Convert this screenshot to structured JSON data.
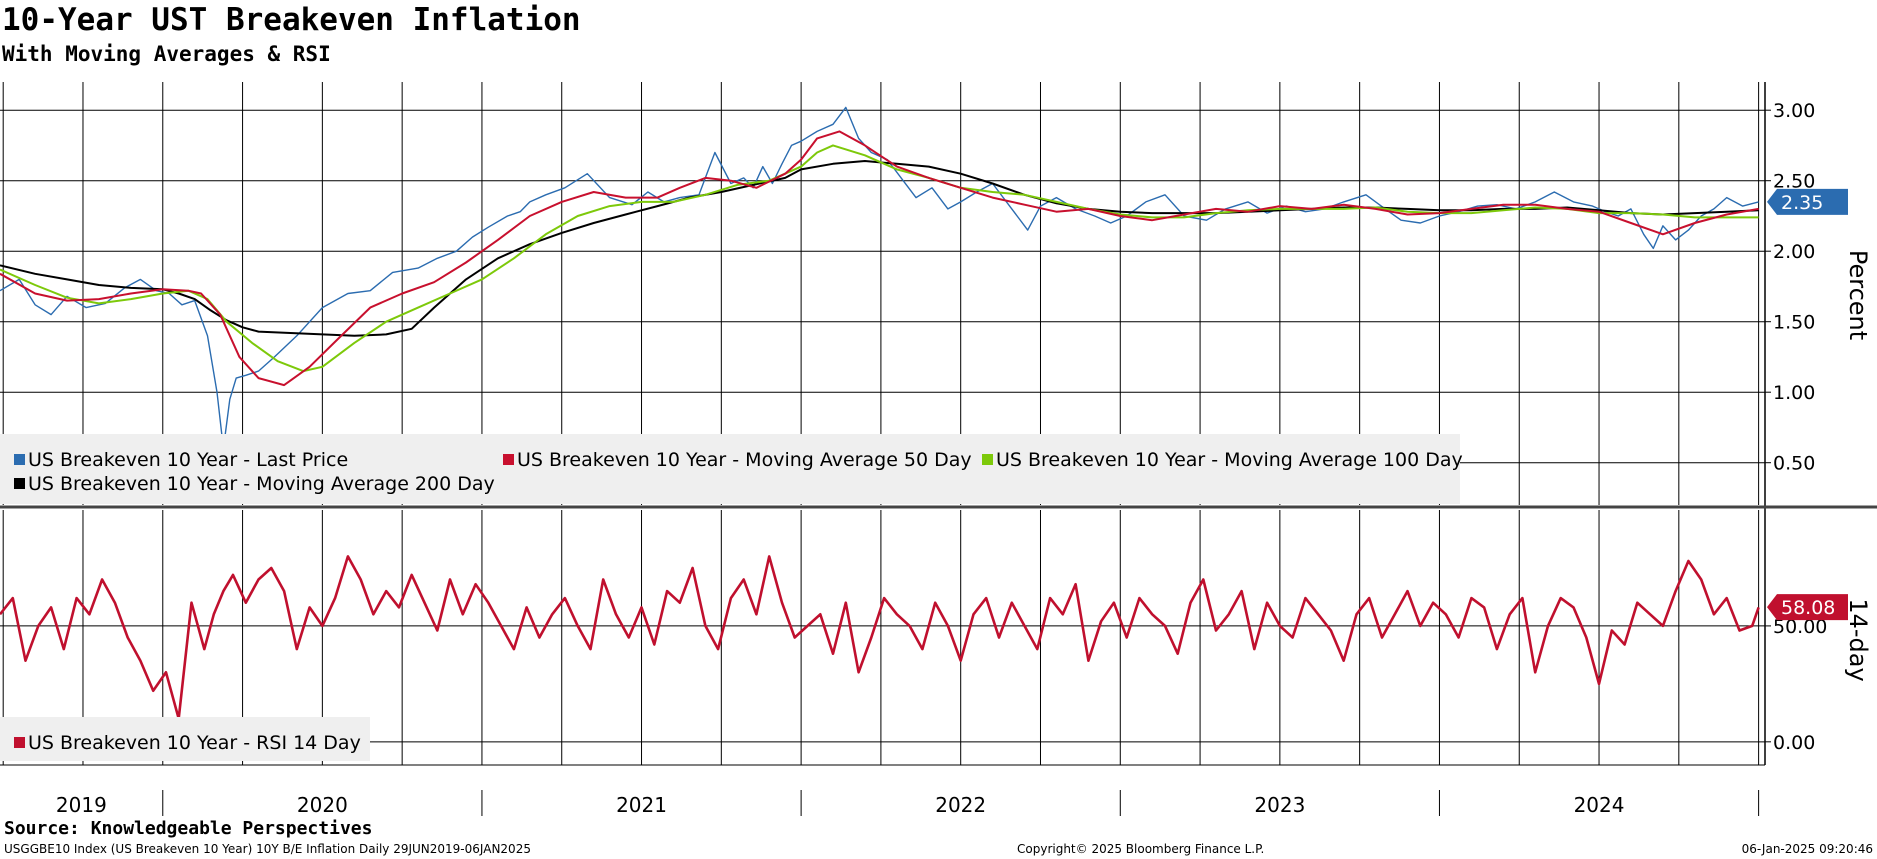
{
  "header": {
    "title": "10-Year UST Breakeven Inflation",
    "subtitle": "With Moving Averages & RSI"
  },
  "footer": {
    "source": "Source: Knowledgeable Perspectives",
    "ticker_info": "USGGBE10 Index (US Breakeven 10 Year) 10Y B/E Inflation  Daily 29JUN2019-06JAN2025",
    "copyright": "Copyright© 2025 Bloomberg Finance L.P.",
    "timestamp": "06-Jan-2025 09:20:46"
  },
  "colors": {
    "last_price": "#2b6cb0",
    "ma50": "#c8102e",
    "ma100": "#7dc90a",
    "ma200": "#000000",
    "rsi": "#c0102e",
    "grid": "#000000",
    "legend_bg": "#efefef"
  },
  "chart_data": [
    {
      "type": "line",
      "title": "US Breakeven 10 Year",
      "ylabel": "Percent",
      "ylim": [
        0.2,
        3.2
      ],
      "xlim": [
        2019.49,
        2025.02
      ],
      "yticks": [
        0.5,
        1.0,
        1.5,
        2.0,
        2.5,
        3.0
      ],
      "ytick_labels": [
        "0.50",
        "1.00",
        "1.50",
        "2.00",
        "2.50",
        "3.00"
      ],
      "last_value_label": "2.35",
      "last_value": 2.35,
      "legend": [
        "US Breakeven 10 Year - Last Price",
        "US Breakeven 10 Year - Moving Average 50 Day",
        "US Breakeven 10 Year - Moving Average 100 Day",
        "US Breakeven 10 Year - Moving Average 200 Day"
      ],
      "series": [
        {
          "name": "US Breakeven 10 Year - Last Price",
          "color_key": "last_price",
          "x": [
            2019.49,
            2019.55,
            2019.6,
            2019.65,
            2019.7,
            2019.76,
            2019.82,
            2019.88,
            2019.93,
            2019.98,
            2020.02,
            2020.06,
            2020.1,
            2020.14,
            2020.17,
            2020.19,
            2020.21,
            2020.23,
            2020.26,
            2020.3,
            2020.35,
            2020.42,
            2020.5,
            2020.58,
            2020.65,
            2020.72,
            2020.8,
            2020.86,
            2020.92,
            2020.97,
            2021.02,
            2021.08,
            2021.12,
            2021.15,
            2021.2,
            2021.26,
            2021.33,
            2021.4,
            2021.47,
            2021.52,
            2021.57,
            2021.62,
            2021.68,
            2021.73,
            2021.78,
            2021.82,
            2021.85,
            2021.88,
            2021.91,
            2021.94,
            2021.97,
            2022.0,
            2022.05,
            2022.1,
            2022.14,
            2022.18,
            2022.22,
            2022.27,
            2022.32,
            2022.36,
            2022.41,
            2022.46,
            2022.5,
            2022.55,
            2022.6,
            2022.66,
            2022.71,
            2022.75,
            2022.8,
            2022.86,
            2022.92,
            2022.97,
            2023.02,
            2023.08,
            2023.14,
            2023.2,
            2023.27,
            2023.33,
            2023.4,
            2023.46,
            2023.52,
            2023.58,
            2023.64,
            2023.7,
            2023.77,
            2023.83,
            2023.88,
            2023.94,
            2024.0,
            2024.06,
            2024.12,
            2024.18,
            2024.24,
            2024.3,
            2024.36,
            2024.42,
            2024.48,
            2024.52,
            2024.56,
            2024.6,
            2024.64,
            2024.67,
            2024.7,
            2024.74,
            2024.78,
            2024.82,
            2024.86,
            2024.9,
            2024.95,
            2025.0
          ],
          "values": [
            1.72,
            1.8,
            1.62,
            1.55,
            1.68,
            1.6,
            1.63,
            1.74,
            1.8,
            1.72,
            1.7,
            1.62,
            1.65,
            1.4,
            1.0,
            0.6,
            0.95,
            1.1,
            1.12,
            1.15,
            1.25,
            1.4,
            1.6,
            1.7,
            1.72,
            1.85,
            1.88,
            1.95,
            2.0,
            2.1,
            2.17,
            2.25,
            2.28,
            2.35,
            2.4,
            2.45,
            2.55,
            2.38,
            2.33,
            2.42,
            2.35,
            2.38,
            2.4,
            2.7,
            2.48,
            2.52,
            2.45,
            2.6,
            2.48,
            2.62,
            2.75,
            2.78,
            2.85,
            2.9,
            3.02,
            2.8,
            2.7,
            2.65,
            2.5,
            2.38,
            2.45,
            2.3,
            2.35,
            2.42,
            2.48,
            2.3,
            2.15,
            2.32,
            2.38,
            2.3,
            2.25,
            2.2,
            2.25,
            2.35,
            2.4,
            2.25,
            2.22,
            2.3,
            2.35,
            2.27,
            2.32,
            2.28,
            2.3,
            2.35,
            2.4,
            2.3,
            2.22,
            2.2,
            2.25,
            2.28,
            2.32,
            2.33,
            2.3,
            2.35,
            2.42,
            2.35,
            2.32,
            2.28,
            2.25,
            2.3,
            2.12,
            2.02,
            2.18,
            2.08,
            2.15,
            2.25,
            2.3,
            2.38,
            2.32,
            2.35
          ]
        },
        {
          "name": "US Breakeven 10 Year - Moving Average 50 Day",
          "color_key": "ma50",
          "x": [
            2019.49,
            2019.6,
            2019.7,
            2019.8,
            2019.9,
            2020.0,
            2020.08,
            2020.12,
            2020.18,
            2020.24,
            2020.3,
            2020.38,
            2020.46,
            2020.55,
            2020.65,
            2020.75,
            2020.85,
            2020.95,
            2021.05,
            2021.15,
            2021.25,
            2021.35,
            2021.45,
            2021.55,
            2021.62,
            2021.7,
            2021.78,
            2021.86,
            2021.95,
            2022.0,
            2022.05,
            2022.12,
            2022.2,
            2022.3,
            2022.4,
            2022.5,
            2022.6,
            2022.7,
            2022.8,
            2022.9,
            2023.0,
            2023.1,
            2023.2,
            2023.3,
            2023.4,
            2023.5,
            2023.6,
            2023.7,
            2023.8,
            2023.9,
            2024.0,
            2024.1,
            2024.2,
            2024.3,
            2024.4,
            2024.5,
            2024.6,
            2024.7,
            2024.8,
            2024.9,
            2025.0
          ],
          "values": [
            1.84,
            1.7,
            1.65,
            1.66,
            1.7,
            1.73,
            1.72,
            1.7,
            1.55,
            1.25,
            1.1,
            1.05,
            1.18,
            1.38,
            1.6,
            1.7,
            1.78,
            1.92,
            2.08,
            2.25,
            2.35,
            2.42,
            2.38,
            2.38,
            2.45,
            2.52,
            2.5,
            2.45,
            2.55,
            2.65,
            2.8,
            2.85,
            2.75,
            2.6,
            2.52,
            2.45,
            2.38,
            2.33,
            2.28,
            2.3,
            2.25,
            2.22,
            2.26,
            2.3,
            2.28,
            2.32,
            2.3,
            2.33,
            2.3,
            2.26,
            2.27,
            2.3,
            2.33,
            2.33,
            2.3,
            2.28,
            2.2,
            2.12,
            2.2,
            2.26,
            2.3
          ]
        },
        {
          "name": "US Breakeven 10 Year - Moving Average 100 Day",
          "color_key": "ma100",
          "x": [
            2019.49,
            2019.6,
            2019.7,
            2019.8,
            2019.9,
            2020.0,
            2020.08,
            2020.14,
            2020.2,
            2020.28,
            2020.36,
            2020.44,
            2020.5,
            2020.6,
            2020.7,
            2020.8,
            2020.9,
            2021.0,
            2021.1,
            2021.2,
            2021.3,
            2021.4,
            2021.5,
            2021.6,
            2021.7,
            2021.8,
            2021.9,
            2022.0,
            2022.05,
            2022.1,
            2022.2,
            2022.3,
            2022.4,
            2022.5,
            2022.6,
            2022.7,
            2022.8,
            2022.9,
            2023.0,
            2023.1,
            2023.2,
            2023.3,
            2023.4,
            2023.5,
            2023.6,
            2023.7,
            2023.8,
            2023.9,
            2024.0,
            2024.1,
            2024.2,
            2024.3,
            2024.4,
            2024.5,
            2024.6,
            2024.7,
            2024.8,
            2024.9,
            2025.0
          ],
          "values": [
            1.87,
            1.76,
            1.67,
            1.63,
            1.66,
            1.7,
            1.72,
            1.66,
            1.5,
            1.35,
            1.22,
            1.15,
            1.18,
            1.35,
            1.5,
            1.6,
            1.7,
            1.8,
            1.95,
            2.12,
            2.25,
            2.32,
            2.35,
            2.35,
            2.4,
            2.47,
            2.5,
            2.6,
            2.7,
            2.75,
            2.68,
            2.58,
            2.52,
            2.45,
            2.42,
            2.4,
            2.35,
            2.3,
            2.26,
            2.24,
            2.24,
            2.27,
            2.29,
            2.3,
            2.3,
            2.3,
            2.31,
            2.28,
            2.27,
            2.27,
            2.29,
            2.31,
            2.3,
            2.27,
            2.27,
            2.26,
            2.24,
            2.24,
            2.24
          ]
        },
        {
          "name": "US Breakeven 10 Year - Moving Average 200 Day",
          "color_key": "ma200",
          "x": [
            2019.49,
            2019.6,
            2019.7,
            2019.8,
            2019.9,
            2020.0,
            2020.05,
            2020.1,
            2020.15,
            2020.2,
            2020.25,
            2020.3,
            2020.4,
            2020.5,
            2020.6,
            2020.7,
            2020.78,
            2020.85,
            2020.95,
            2021.05,
            2021.15,
            2021.25,
            2021.35,
            2021.45,
            2021.55,
            2021.65,
            2021.75,
            2021.85,
            2021.95,
            2022.0,
            2022.1,
            2022.2,
            2022.3,
            2022.4,
            2022.5,
            2022.6,
            2022.7,
            2022.8,
            2022.9,
            2023.0,
            2023.1,
            2023.2,
            2023.3,
            2023.4,
            2023.5,
            2023.6,
            2023.7,
            2023.8,
            2023.9,
            2024.0,
            2024.1,
            2024.2,
            2024.3,
            2024.4,
            2024.5,
            2024.6,
            2024.7,
            2024.8,
            2024.9,
            2025.0
          ],
          "values": [
            1.9,
            1.84,
            1.8,
            1.76,
            1.74,
            1.73,
            1.7,
            1.66,
            1.58,
            1.51,
            1.46,
            1.43,
            1.42,
            1.41,
            1.4,
            1.41,
            1.45,
            1.6,
            1.8,
            1.95,
            2.05,
            2.13,
            2.2,
            2.26,
            2.32,
            2.38,
            2.42,
            2.47,
            2.52,
            2.58,
            2.62,
            2.64,
            2.62,
            2.6,
            2.55,
            2.48,
            2.4,
            2.34,
            2.3,
            2.28,
            2.27,
            2.27,
            2.27,
            2.28,
            2.29,
            2.3,
            2.31,
            2.31,
            2.3,
            2.29,
            2.29,
            2.3,
            2.3,
            2.31,
            2.29,
            2.27,
            2.26,
            2.27,
            2.28,
            2.29
          ]
        }
      ]
    },
    {
      "type": "line",
      "title": "US Breakeven 10 Year - RSI 14 Day",
      "ylabel": "14-day",
      "ylim": [
        -10,
        100
      ],
      "xlim": [
        2019.49,
        2025.02
      ],
      "yticks": [
        0,
        50
      ],
      "ytick_labels": [
        "0.00",
        "50.00"
      ],
      "last_value_label": "58.08",
      "last_value": 58.08,
      "legend": [
        "US Breakeven 10 Year - RSI 14 Day"
      ],
      "series": [
        {
          "name": "US Breakeven 10 Year - RSI 14 Day",
          "color_key": "rsi",
          "x": [
            2019.49,
            2019.53,
            2019.57,
            2019.61,
            2019.65,
            2019.69,
            2019.73,
            2019.77,
            2019.81,
            2019.85,
            2019.89,
            2019.93,
            2019.97,
            2020.01,
            2020.05,
            2020.09,
            2020.13,
            2020.16,
            2020.19,
            2020.22,
            2020.26,
            2020.3,
            2020.34,
            2020.38,
            2020.42,
            2020.46,
            2020.5,
            2020.54,
            2020.58,
            2020.62,
            2020.66,
            2020.7,
            2020.74,
            2020.78,
            2020.82,
            2020.86,
            2020.9,
            2020.94,
            2020.98,
            2021.02,
            2021.06,
            2021.1,
            2021.14,
            2021.18,
            2021.22,
            2021.26,
            2021.3,
            2021.34,
            2021.38,
            2021.42,
            2021.46,
            2021.5,
            2021.54,
            2021.58,
            2021.62,
            2021.66,
            2021.7,
            2021.74,
            2021.78,
            2021.82,
            2021.86,
            2021.9,
            2021.94,
            2021.98,
            2022.02,
            2022.06,
            2022.1,
            2022.14,
            2022.18,
            2022.22,
            2022.26,
            2022.3,
            2022.34,
            2022.38,
            2022.42,
            2022.46,
            2022.5,
            2022.54,
            2022.58,
            2022.62,
            2022.66,
            2022.7,
            2022.74,
            2022.78,
            2022.82,
            2022.86,
            2022.9,
            2022.94,
            2022.98,
            2023.02,
            2023.06,
            2023.1,
            2023.14,
            2023.18,
            2023.22,
            2023.26,
            2023.3,
            2023.34,
            2023.38,
            2023.42,
            2023.46,
            2023.5,
            2023.54,
            2023.58,
            2023.62,
            2023.66,
            2023.7,
            2023.74,
            2023.78,
            2023.82,
            2023.86,
            2023.9,
            2023.94,
            2023.98,
            2024.02,
            2024.06,
            2024.1,
            2024.14,
            2024.18,
            2024.22,
            2024.26,
            2024.3,
            2024.34,
            2024.38,
            2024.42,
            2024.46,
            2024.5,
            2024.54,
            2024.58,
            2024.62,
            2024.66,
            2024.7,
            2024.74,
            2024.78,
            2024.82,
            2024.86,
            2024.9,
            2024.94,
            2024.98,
            2025.0
          ],
          "values": [
            55,
            62,
            35,
            50,
            58,
            40,
            62,
            55,
            70,
            60,
            45,
            35,
            22,
            30,
            10,
            60,
            40,
            55,
            65,
            72,
            60,
            70,
            75,
            65,
            40,
            58,
            50,
            62,
            80,
            70,
            55,
            65,
            58,
            72,
            60,
            48,
            70,
            55,
            68,
            60,
            50,
            40,
            58,
            45,
            55,
            62,
            50,
            40,
            70,
            55,
            45,
            58,
            42,
            65,
            60,
            75,
            50,
            40,
            62,
            70,
            55,
            80,
            60,
            45,
            50,
            55,
            38,
            60,
            30,
            45,
            62,
            55,
            50,
            40,
            60,
            50,
            35,
            55,
            62,
            45,
            60,
            50,
            40,
            62,
            55,
            68,
            35,
            52,
            60,
            45,
            62,
            55,
            50,
            38,
            60,
            70,
            48,
            55,
            65,
            40,
            60,
            50,
            45,
            62,
            55,
            48,
            35,
            55,
            62,
            45,
            55,
            65,
            50,
            60,
            55,
            45,
            62,
            58,
            40,
            55,
            62,
            30,
            50,
            62,
            58,
            45,
            25,
            48,
            42,
            60,
            55,
            50,
            65,
            78,
            70,
            55,
            62,
            48,
            50,
            58
          ]
        }
      ]
    }
  ],
  "x_axis": {
    "year_labels": [
      "2019",
      "2020",
      "2021",
      "2022",
      "2023",
      "2024"
    ]
  }
}
